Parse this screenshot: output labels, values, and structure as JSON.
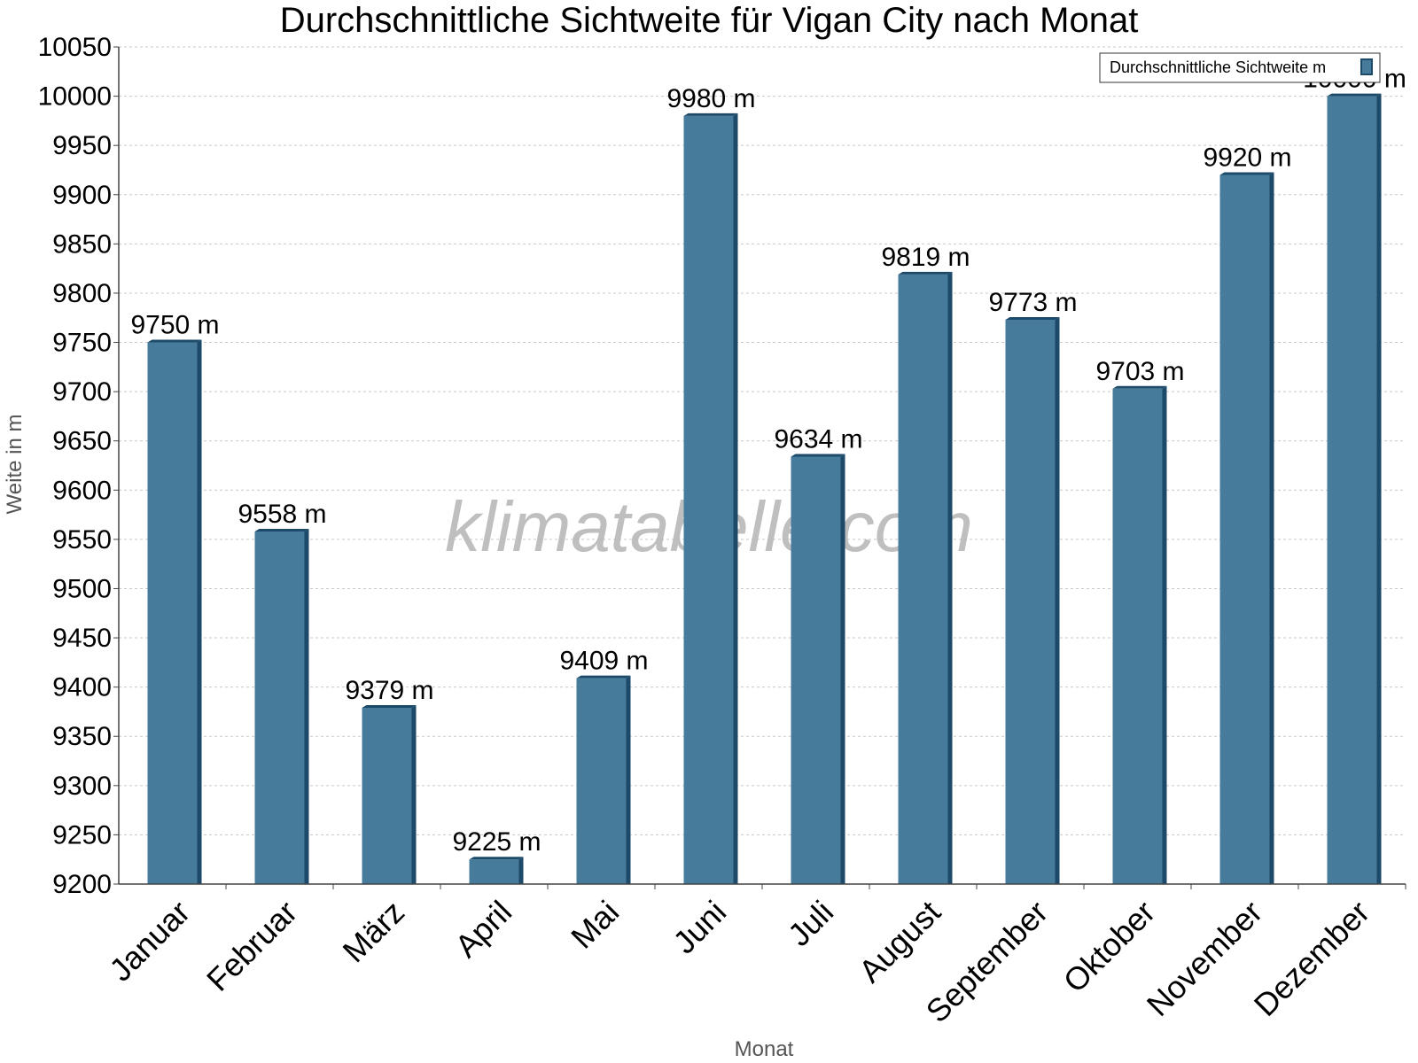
{
  "colors": {
    "bar_front": "#467b9c",
    "bar_side": "#1d4a69",
    "gridline": "#c8c8c8",
    "axis": "#444444",
    "watermark": "#b4b4b4"
  },
  "watermark": "klimatabelle.com",
  "chart_data": {
    "type": "bar",
    "title": "Durchschnittliche Sichtweite für Vigan City nach Monat",
    "xlabel": "Monat",
    "ylabel": "Weite in m",
    "ylim": [
      9200,
      10050
    ],
    "ytick_step": 50,
    "yticks": [
      "9200",
      "9250",
      "9300",
      "9350",
      "9400",
      "9450",
      "9500",
      "9550",
      "9600",
      "9650",
      "9700",
      "9750",
      "9800",
      "9850",
      "9900",
      "9950",
      "10000",
      "10050"
    ],
    "grid": true,
    "legend_position": "top-right",
    "categories": [
      "Januar",
      "Februar",
      "März",
      "April",
      "Mai",
      "Juni",
      "Juli",
      "August",
      "September",
      "Oktober",
      "November",
      "Dezember"
    ],
    "series": [
      {
        "name": "Durchschnittliche Sichtweite m",
        "values": [
          9750,
          9558,
          9379,
          9225,
          9409,
          9980,
          9634,
          9819,
          9773,
          9703,
          9920,
          10000
        ],
        "data_labels": [
          "9750 m",
          "9558 m",
          "9379 m",
          "9225 m",
          "9409 m",
          "9980 m",
          "9634 m",
          "9819 m",
          "9773 m",
          "9703 m",
          "9920 m",
          "10000 m"
        ]
      }
    ]
  }
}
